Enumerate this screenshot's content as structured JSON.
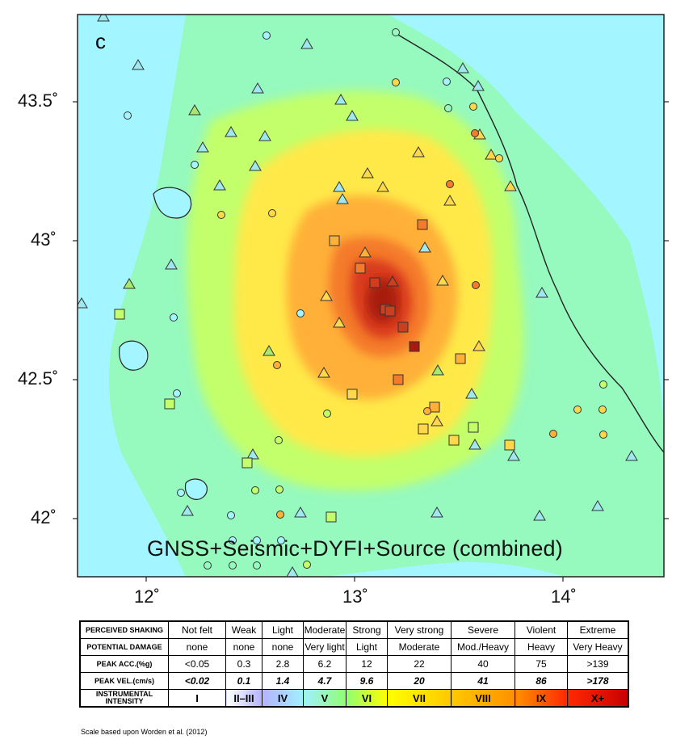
{
  "panel_letter": "c",
  "overlay_title": "GNSS+Seismic+DYFI+Source (combined)",
  "axes": {
    "lat_labels": [
      "43.5˚",
      "43˚",
      "42.5˚",
      "42˚"
    ],
    "lon_labels": [
      "12˚",
      "13˚",
      "14˚"
    ]
  },
  "legend": {
    "rows": [
      {
        "label": "PERCEIVED SHAKING",
        "cells": [
          "Not felt",
          "Weak",
          "Light",
          "Moderate",
          "Strong",
          "Very strong",
          "Severe",
          "Violent",
          "Extreme"
        ]
      },
      {
        "label": "POTENTIAL DAMAGE",
        "cells": [
          "none",
          "none",
          "none",
          "Very light",
          "Light",
          "Moderate",
          "Mod./Heavy",
          "Heavy",
          "Very Heavy"
        ]
      },
      {
        "label": "PEAK ACC.(%g)",
        "cells": [
          "<0.05",
          "0.3",
          "2.8",
          "6.2",
          "12",
          "22",
          "40",
          "75",
          ">139"
        ]
      },
      {
        "label": "PEAK VEL.(cm/s)",
        "cells": [
          "<0.02",
          "0.1",
          "1.4",
          "4.7",
          "9.6",
          "20",
          "41",
          "86",
          ">178"
        ]
      },
      {
        "label": "INSTRUMENTAL INTENSITY",
        "cells": [
          "I",
          "II–III",
          "IV",
          "V",
          "VI",
          "VII",
          "VIII",
          "IX",
          "X+"
        ]
      }
    ],
    "intensity_colors": [
      "#ffffff",
      "#b3b3ff",
      "#a0f0ff",
      "#90ff70",
      "#ffff00",
      "#ffc800",
      "#ff9000",
      "#ff2800",
      "#c80000"
    ],
    "credit": "Scale based upon Worden et al. (2012)"
  },
  "colors": {
    "sea": "#a3f6ff",
    "land_low": "#96f9bd",
    "int_v": "#c2ff6a",
    "int_vi": "#ffe94a",
    "int_vii": "#ffb037",
    "int_viii": "#f47a2c",
    "int_ix": "#d83a1e",
    "int_x": "#a81a10"
  }
}
